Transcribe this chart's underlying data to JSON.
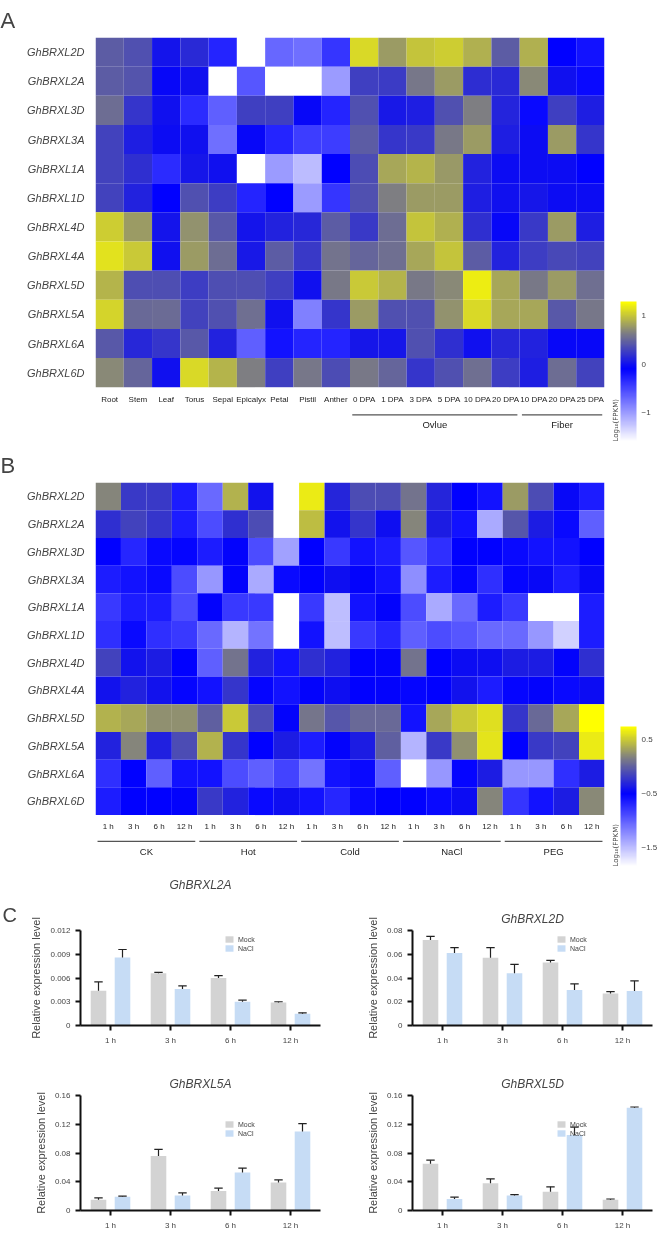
{
  "chart_data": [
    {
      "type": "heatmap",
      "annotations": [
        "A",
        "Ovlue",
        "Fiber"
      ],
      "clabel": "Log₁₀(FPKM)",
      "clim": [
        -1.6,
        1.3
      ],
      "cticks": [
        -1,
        0,
        1
      ],
      "categories": [
        "Root",
        "Stem",
        "Leaf",
        "Torus",
        "Sepal",
        "Epicalyx",
        "Petal",
        "Pistil",
        "Anther",
        "0 DPA",
        "1 DPA",
        "3 DPA",
        "5 DPA",
        "10 DPA",
        "20 DPA",
        "10 DPA",
        "20 DPA",
        "25 DPA"
      ],
      "y_categories": [
        "GhBRXL2D",
        "GhBRXL2A",
        "GhBRXL3D",
        "GhBRXL3A",
        "GhBRXL1A",
        "GhBRXL1D",
        "GhBRXL4D",
        "GhBRXL4A",
        "GhBRXL5D",
        "GhBRXL5A",
        "GhBRXL6A",
        "GhBRXL6D"
      ],
      "cells": [
        [
          0.45,
          0.38,
          0.02,
          0.15,
          -0.3,
          -1.6,
          -0.7,
          -0.75,
          -0.4,
          1.1,
          0.8,
          1.0,
          1.05,
          0.9,
          0.45,
          0.9,
          -0.1,
          -0.2
        ],
        [
          0.45,
          0.4,
          -0.05,
          0.0,
          -1.6,
          -0.6,
          -1.6,
          -1.6,
          -1.0,
          0.28,
          0.25,
          0.6,
          0.8,
          0.17,
          0.15,
          0.7,
          0.0,
          -0.15
        ],
        [
          0.55,
          0.22,
          0.0,
          -0.35,
          -0.65,
          0.27,
          0.28,
          -0.05,
          -0.3,
          0.38,
          0.05,
          0.08,
          0.38,
          0.65,
          0.12,
          -0.15,
          0.28,
          0.08
        ],
        [
          0.3,
          0.08,
          -0.02,
          0.0,
          -0.75,
          -0.05,
          -0.3,
          -0.45,
          -0.45,
          0.45,
          0.22,
          0.24,
          0.62,
          0.8,
          0.08,
          -0.02,
          0.8,
          0.22
        ],
        [
          0.3,
          0.18,
          -0.35,
          0.04,
          0.0,
          -1.6,
          -1.0,
          -1.2,
          -0.1,
          0.35,
          0.85,
          0.92,
          0.78,
          0.1,
          -0.02,
          -0.02,
          -0.02,
          -0.1
        ],
        [
          0.3,
          0.1,
          -0.1,
          0.38,
          0.26,
          -0.3,
          -0.1,
          -1.0,
          -0.4,
          0.38,
          0.65,
          0.8,
          0.8,
          0.08,
          0.0,
          0.04,
          -0.02,
          -0.02
        ],
        [
          1.05,
          0.8,
          0.02,
          0.75,
          0.42,
          0.03,
          0.1,
          0.14,
          0.45,
          0.24,
          0.55,
          1.0,
          0.9,
          0.18,
          -0.05,
          0.24,
          0.8,
          0.08
        ],
        [
          1.15,
          1.02,
          0.0,
          0.8,
          0.55,
          0.05,
          0.45,
          0.24,
          0.58,
          0.5,
          0.56,
          0.85,
          1.0,
          0.45,
          0.1,
          0.26,
          0.33,
          0.3
        ],
        [
          0.92,
          0.36,
          0.36,
          0.26,
          0.36,
          0.36,
          0.28,
          0.0,
          0.62,
          1.02,
          0.92,
          0.62,
          0.7,
          1.2,
          0.85,
          0.62,
          0.8,
          0.56
        ],
        [
          1.08,
          0.52,
          0.54,
          0.3,
          0.38,
          0.56,
          0.0,
          -0.85,
          0.22,
          0.8,
          0.38,
          0.38,
          0.75,
          1.1,
          0.85,
          0.85,
          0.42,
          0.6
        ],
        [
          0.42,
          0.14,
          0.22,
          0.42,
          0.1,
          -0.65,
          -0.2,
          -0.3,
          -0.3,
          0.04,
          0.04,
          0.38,
          0.18,
          0.0,
          0.14,
          0.1,
          -0.05,
          -0.05
        ],
        [
          0.7,
          0.5,
          0.0,
          1.1,
          0.92,
          0.65,
          0.28,
          0.6,
          0.35,
          0.62,
          0.5,
          0.22,
          0.38,
          0.56,
          0.26,
          0.08,
          0.55,
          0.3
        ]
      ]
    },
    {
      "type": "heatmap",
      "annotations": [
        "B",
        "CK",
        "Hot",
        "Cold",
        "NaCl",
        "PEG"
      ],
      "clabel": "Log₁₀(FPKM)",
      "clim": [
        -1.85,
        0.75
      ],
      "cticks": [
        -1.5,
        -0.5,
        0.5
      ],
      "categories": [
        "1 h",
        "3 h",
        "6 h",
        "12 h",
        "1 h",
        "3 h",
        "6 h",
        "12 h",
        "1 h",
        "3 h",
        "6 h",
        "12 h",
        "1 h",
        "3 h",
        "6 h",
        "12 h",
        "1 h",
        "3 h",
        "6 h",
        "12 h"
      ],
      "y_categories": [
        "GhBRXL2D",
        "GhBRXL2A",
        "GhBRXL3D",
        "GhBRXL3A",
        "GhBRXL1A",
        "GhBRXL1D",
        "GhBRXL4D",
        "GhBRXL4A",
        "GhBRXL5D",
        "GhBRXL5A",
        "GhBRXL6A",
        "GhBRXL6D"
      ],
      "cells": [
        [
          0.2,
          -0.2,
          -0.2,
          -0.65,
          -1.05,
          0.4,
          -0.4,
          -1.85,
          0.65,
          -0.3,
          -0.1,
          -0.1,
          0.1,
          -0.3,
          -0.5,
          -0.6,
          0.3,
          -0.1,
          -0.45,
          -0.65
        ],
        [
          -0.25,
          -0.15,
          -0.22,
          -0.65,
          -0.9,
          -0.25,
          -0.1,
          -1.85,
          0.45,
          -0.4,
          -0.22,
          -0.42,
          0.2,
          -0.35,
          -0.6,
          -1.4,
          -0.05,
          -0.35,
          -0.55,
          -1.0
        ],
        [
          -0.5,
          -0.7,
          -0.55,
          -0.52,
          -0.65,
          -0.48,
          -0.9,
          -1.35,
          -0.5,
          -0.8,
          -0.6,
          -0.65,
          -0.95,
          -0.75,
          -0.5,
          -0.5,
          -0.55,
          -0.6,
          -0.6,
          -0.5
        ],
        [
          -0.65,
          -0.6,
          -0.55,
          -0.9,
          -1.3,
          -0.48,
          -1.4,
          -0.55,
          -0.5,
          -0.42,
          -0.48,
          -0.6,
          -1.25,
          -0.65,
          -0.52,
          -0.75,
          -0.52,
          -0.45,
          -0.65,
          -0.45
        ],
        [
          -0.8,
          -0.65,
          -0.65,
          -0.9,
          -0.48,
          -0.8,
          -0.8,
          -1.85,
          -0.8,
          -1.5,
          -0.6,
          -0.48,
          -0.9,
          -1.4,
          -1.05,
          -0.65,
          -0.8,
          -1.85,
          -1.85,
          -0.65
        ],
        [
          -0.75,
          -0.55,
          -0.75,
          -0.8,
          -1.05,
          -1.45,
          -1.1,
          -1.85,
          -0.6,
          -1.5,
          -0.8,
          -0.7,
          -1.0,
          -0.9,
          -0.95,
          -1.05,
          -1.05,
          -1.3,
          -1.6,
          -0.65
        ],
        [
          -0.15,
          -0.4,
          -0.35,
          -0.5,
          -1.0,
          0.1,
          -0.32,
          -0.6,
          -0.25,
          -0.32,
          -0.5,
          -0.48,
          0.1,
          -0.5,
          -0.43,
          -0.42,
          -0.35,
          -0.35,
          -0.48,
          -0.25
        ],
        [
          -0.4,
          -0.32,
          -0.4,
          -0.52,
          -0.6,
          -0.22,
          -0.52,
          -0.6,
          -0.48,
          -0.42,
          -0.5,
          -0.48,
          -0.52,
          -0.5,
          -0.4,
          -0.65,
          -0.52,
          -0.48,
          -0.55,
          -0.43
        ],
        [
          0.4,
          0.35,
          0.25,
          0.25,
          0.0,
          0.5,
          -0.1,
          -0.48,
          0.12,
          -0.05,
          0.05,
          0.05,
          -0.6,
          0.35,
          0.5,
          0.6,
          -0.22,
          0.05,
          0.35,
          0.75
        ],
        [
          -0.32,
          0.2,
          -0.33,
          -0.1,
          0.4,
          -0.22,
          -0.5,
          -0.35,
          -0.65,
          -0.48,
          -0.35,
          0.0,
          -1.45,
          -0.2,
          0.25,
          0.62,
          -0.5,
          -0.2,
          -0.15,
          0.65
        ],
        [
          -0.75,
          -0.5,
          -1.0,
          -0.6,
          -0.6,
          -0.9,
          -1.0,
          -0.85,
          -1.1,
          -0.6,
          -0.55,
          -1.0,
          -1.85,
          -1.3,
          -0.52,
          -0.35,
          -1.3,
          -1.3,
          -0.75,
          -0.35
        ],
        [
          -0.65,
          -0.5,
          -0.5,
          -0.48,
          -0.2,
          -0.32,
          -0.55,
          -0.42,
          -0.6,
          -0.7,
          -0.55,
          -0.5,
          -0.5,
          -0.55,
          -0.43,
          0.2,
          -0.78,
          -0.6,
          -0.35,
          0.22
        ]
      ]
    },
    {
      "type": "bar",
      "title": "GhBRXL2A",
      "annotations": [
        "C"
      ],
      "ylabel": "Relative expression level",
      "categories": [
        "1 h",
        "3 h",
        "6 h",
        "12 h"
      ],
      "ylim": [
        0,
        0.012
      ],
      "yticks": [
        0,
        0.003,
        0.006,
        0.009,
        0.012
      ],
      "legend": "top right",
      "series": [
        {
          "name": "Mock",
          "color": "#d3d3d3",
          "values": [
            0.0044,
            0.0066,
            0.006,
            0.0029
          ],
          "errors": [
            0.0011,
            0.0001,
            0.0003,
            0.0001
          ]
        },
        {
          "name": "NaCl",
          "color": "#c6dcf5",
          "values": [
            0.0086,
            0.0046,
            0.003,
            0.0015
          ],
          "errors": [
            0.001,
            0.0004,
            0.0002,
            0.0001
          ]
        }
      ]
    },
    {
      "type": "bar",
      "title": "GhBRXL2D",
      "ylabel": "Relative expression level",
      "categories": [
        "1 h",
        "3 h",
        "6 h",
        "12 h"
      ],
      "ylim": [
        0,
        0.08
      ],
      "yticks": [
        0,
        0.02,
        0.04,
        0.06,
        0.08
      ],
      "legend": "top right",
      "series": [
        {
          "name": "Mock",
          "color": "#d3d3d3",
          "values": [
            0.072,
            0.057,
            0.053,
            0.027
          ],
          "errors": [
            0.003,
            0.0085,
            0.0018,
            0.0015
          ]
        },
        {
          "name": "NaCl",
          "color": "#c6dcf5",
          "values": [
            0.061,
            0.044,
            0.03,
            0.029
          ],
          "errors": [
            0.0045,
            0.0075,
            0.005,
            0.0085
          ]
        }
      ]
    },
    {
      "type": "bar",
      "title": "GhBRXL5A",
      "ylabel": "Relative expression level",
      "categories": [
        "1 h",
        "3 h",
        "6 h",
        "12 h"
      ],
      "ylim": [
        0,
        0.16
      ],
      "yticks": [
        0,
        0.04,
        0.08,
        0.12,
        0.16
      ],
      "legend": "top right",
      "series": [
        {
          "name": "Mock",
          "color": "#d3d3d3",
          "values": [
            0.015,
            0.076,
            0.027,
            0.039
          ],
          "errors": [
            0.0025,
            0.009,
            0.004,
            0.0035
          ]
        },
        {
          "name": "NaCl",
          "color": "#c6dcf5",
          "values": [
            0.019,
            0.021,
            0.053,
            0.11
          ],
          "errors": [
            0.001,
            0.0035,
            0.006,
            0.011
          ]
        }
      ]
    },
    {
      "type": "bar",
      "title": "GhBRXL5D",
      "ylabel": "Relative expression level",
      "categories": [
        "1 h",
        "3 h",
        "6 h",
        "12 h"
      ],
      "ylim": [
        0,
        0.16
      ],
      "yticks": [
        0,
        0.04,
        0.08,
        0.12,
        0.16
      ],
      "legend": "top right",
      "series": [
        {
          "name": "Mock",
          "color": "#d3d3d3",
          "values": [
            0.065,
            0.038,
            0.026,
            0.015
          ],
          "errors": [
            0.005,
            0.006,
            0.007,
            0.001
          ]
        },
        {
          "name": "NaCl",
          "color": "#c6dcf5",
          "values": [
            0.016,
            0.021,
            0.105,
            0.143
          ],
          "errors": [
            0.0025,
            0.001,
            0.011,
            0.001
          ]
        }
      ]
    }
  ]
}
